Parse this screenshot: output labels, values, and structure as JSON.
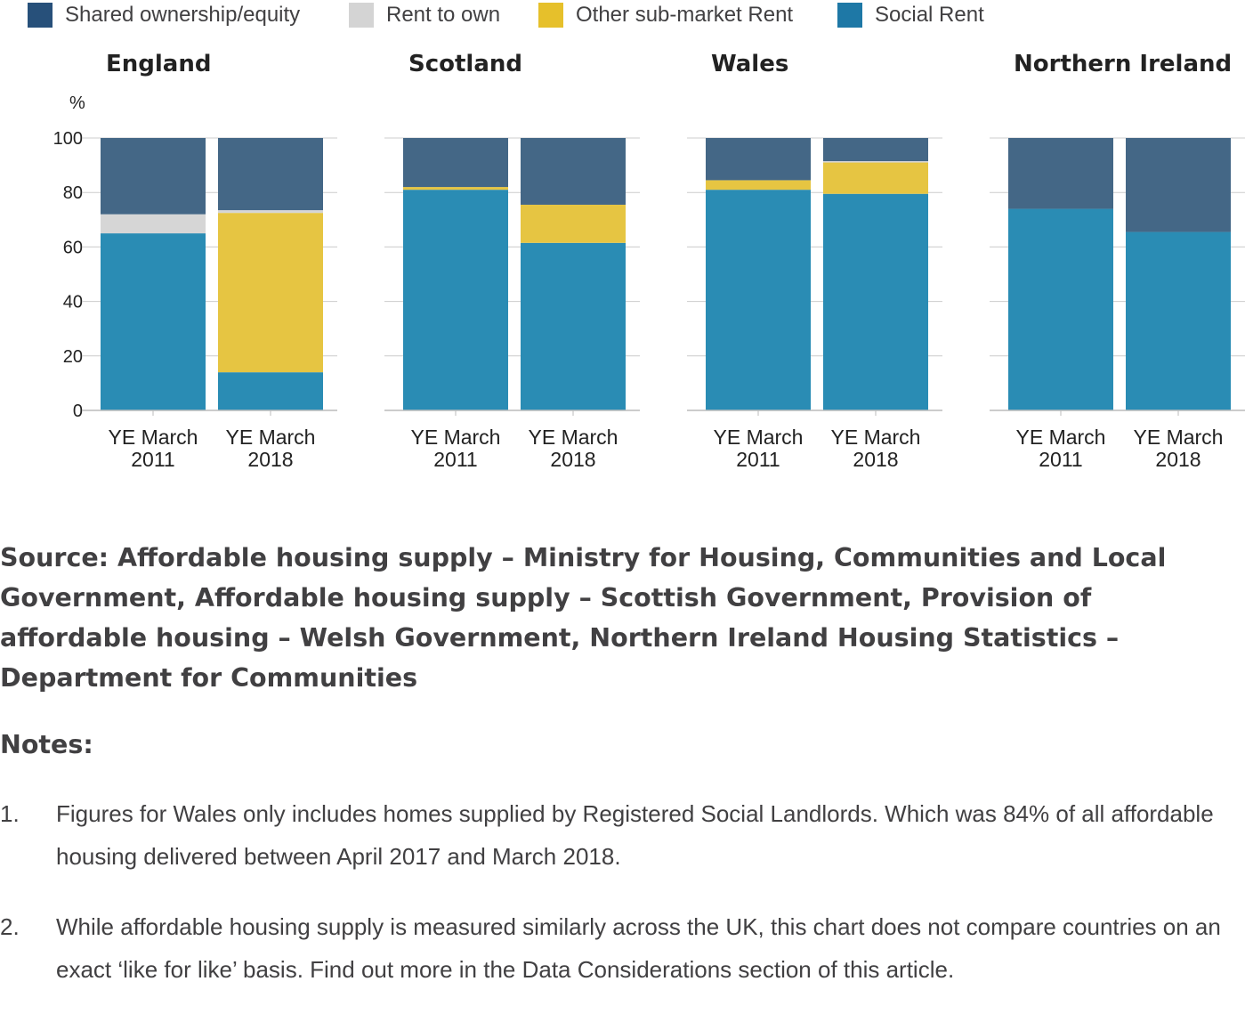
{
  "legend": [
    {
      "label": "Shared ownership/equity",
      "color": "#27507a"
    },
    {
      "label": "Rent to own",
      "color": "#d4d4d4"
    },
    {
      "label": "Other sub-market Rent",
      "color": "#e6c02b"
    },
    {
      "label": "Social Rent",
      "color": "#1e78a6"
    }
  ],
  "chart_data": {
    "type": "bar",
    "stacked": true,
    "ylabel": "%",
    "ylim": [
      0,
      100
    ],
    "yticks": [
      "0",
      "20",
      "40",
      "60",
      "80",
      "100"
    ],
    "x_labels": [
      [
        "YE March",
        "2011"
      ],
      [
        "YE March",
        "2018"
      ]
    ],
    "segment_colors": [
      "#2a8cb4",
      "#e6c542",
      "#d6d6d6",
      "#446786"
    ],
    "panels": [
      {
        "title": "England",
        "categories": [
          "YE March 2011",
          "YE March 2018"
        ],
        "series": [
          {
            "name": "Social Rent",
            "values": [
              65,
              14
            ]
          },
          {
            "name": "Other sub-market Rent",
            "values": [
              0,
              58.5
            ]
          },
          {
            "name": "Rent to own",
            "values": [
              7,
              1
            ]
          },
          {
            "name": "Shared ownership/equity",
            "values": [
              28,
              26.5
            ]
          }
        ]
      },
      {
        "title": "Scotland",
        "categories": [
          "YE March 2011",
          "YE March 2018"
        ],
        "series": [
          {
            "name": "Social Rent",
            "values": [
              81,
              61.5
            ]
          },
          {
            "name": "Other sub-market Rent",
            "values": [
              1,
              14
            ]
          },
          {
            "name": "Rent to own",
            "values": [
              0,
              0
            ]
          },
          {
            "name": "Shared ownership/equity",
            "values": [
              18,
              24.5
            ]
          }
        ]
      },
      {
        "title": "Wales",
        "categories": [
          "YE March 2011",
          "YE March 2018"
        ],
        "series": [
          {
            "name": "Social Rent",
            "values": [
              81,
              79.5
            ]
          },
          {
            "name": "Other sub-market Rent",
            "values": [
              3.5,
              11.5
            ]
          },
          {
            "name": "Rent to own",
            "values": [
              0,
              0.5
            ]
          },
          {
            "name": "Shared ownership/equity",
            "values": [
              15.5,
              8.5
            ]
          }
        ]
      },
      {
        "title": "Northern Ireland",
        "categories": [
          "YE March 2011",
          "YE March 2018"
        ],
        "series": [
          {
            "name": "Social Rent",
            "values": [
              74,
              65.5
            ]
          },
          {
            "name": "Other sub-market Rent",
            "values": [
              0,
              0
            ]
          },
          {
            "name": "Rent to own",
            "values": [
              0,
              0
            ]
          },
          {
            "name": "Shared ownership/equity",
            "values": [
              26,
              34.5
            ]
          }
        ]
      }
    ]
  },
  "source_text": "Source: Affordable housing supply – Ministry for Housing, Communities and Local Government, Affordable housing supply – Scottish Government, Provision of affordable housing – Welsh Government, Northern Ireland Housing Statistics – Department for Communities",
  "notes": {
    "heading": "Notes:",
    "items": [
      {
        "number": "1.",
        "text": "Figures for Wales only includes homes supplied by Registered Social Landlords. Which was 84% of all affordable housing delivered between April 2017 and March 2018."
      },
      {
        "number": "2.",
        "text": "While affordable housing supply is measured similarly across the UK, this chart does not compare countries on an exact ‘like for like’ basis. Find out more in the Data Considerations section of this article."
      }
    ]
  }
}
